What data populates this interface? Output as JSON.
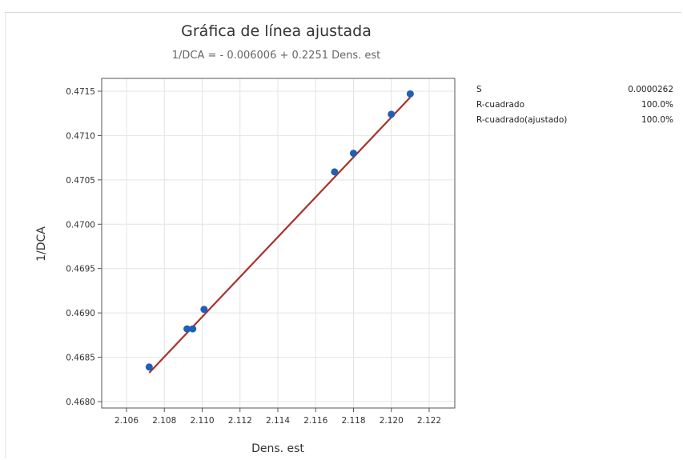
{
  "chart_data": {
    "type": "scatter",
    "title": "Gráfica de línea ajustada",
    "subtitle": "1/DCA = - 0.006006 + 0.2251 Dens. est",
    "xlabel": "Dens. est",
    "ylabel": "1/DCA",
    "xlim": [
      2.106,
      2.122
    ],
    "ylim": [
      0.468,
      0.4716
    ],
    "xticks": [
      "2.106",
      "2.108",
      "2.110",
      "2.112",
      "2.114",
      "2.116",
      "2.118",
      "2.120",
      "2.122"
    ],
    "yticks": [
      "0.4680",
      "0.4685",
      "0.4690",
      "0.4695",
      "0.4700",
      "0.4705",
      "0.4710",
      "0.4715"
    ],
    "grid": true,
    "points": [
      {
        "x": 2.1072,
        "y": 0.46839
      },
      {
        "x": 2.1092,
        "y": 0.46882
      },
      {
        "x": 2.1095,
        "y": 0.46882
      },
      {
        "x": 2.1101,
        "y": 0.46904
      },
      {
        "x": 2.117,
        "y": 0.47059
      },
      {
        "x": 2.118,
        "y": 0.4708
      },
      {
        "x": 2.12,
        "y": 0.47124
      },
      {
        "x": 2.121,
        "y": 0.47147
      }
    ],
    "fit": {
      "intercept": -0.006006,
      "slope": 0.2251,
      "x_range": [
        2.1072,
        2.121
      ]
    },
    "colors": {
      "points": "#1f5fb5",
      "fit_line": "#a8322d",
      "grid": "#e4e4e4",
      "axis": "#555555"
    },
    "stats": [
      {
        "label": "S",
        "value": "0.0000262"
      },
      {
        "label": "R-cuadrado",
        "value": "100.0%"
      },
      {
        "label": "R-cuadrado(ajustado)",
        "value": "100.0%"
      }
    ]
  }
}
